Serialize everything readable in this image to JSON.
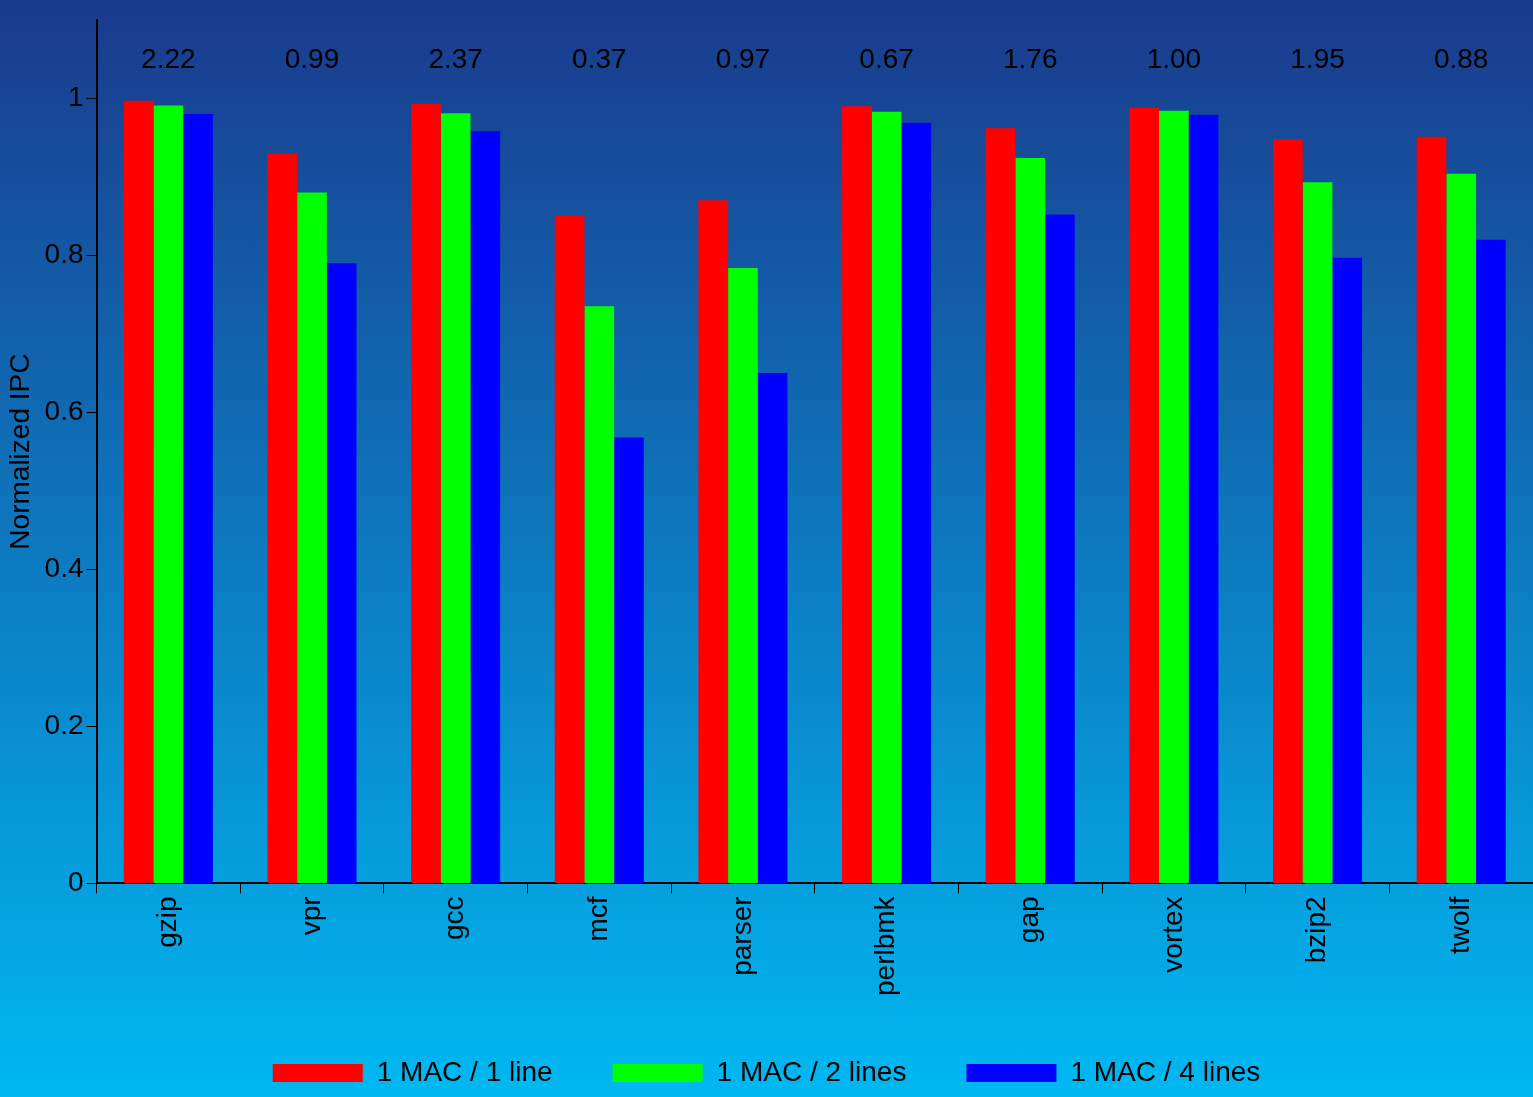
{
  "chart_data": {
    "type": "bar",
    "ylabel": "Normalized IPC",
    "categories": [
      "gzip",
      "vpr",
      "gcc",
      "mcf",
      "parser",
      "perlbmk",
      "gap",
      "vortex",
      "bzip2",
      "twolf"
    ],
    "series": [
      {
        "name": "1 MAC / 1 line",
        "color": "#ff0000",
        "values": [
          0.997,
          0.93,
          0.993,
          0.851,
          0.87,
          0.99,
          0.962,
          0.988,
          0.948,
          0.951
        ]
      },
      {
        "name": "1 MAC / 2 lines",
        "color": "#00ff00",
        "values": [
          0.991,
          0.88,
          0.981,
          0.735,
          0.784,
          0.983,
          0.924,
          0.984,
          0.893,
          0.904
        ]
      },
      {
        "name": "1 MAC / 4 lines",
        "color": "#0000ff",
        "values": [
          0.98,
          0.79,
          0.958,
          0.568,
          0.65,
          0.969,
          0.852,
          0.979,
          0.797,
          0.82
        ]
      }
    ],
    "ylim": [
      0,
      1.1
    ],
    "yticks": [
      0,
      0.2,
      0.4,
      0.6,
      0.8,
      1
    ],
    "annotations": [
      "2.22",
      "0.99",
      "2.37",
      "0.37",
      "0.97",
      "0.67",
      "1.76",
      "1.00",
      "1.95",
      "0.88"
    ],
    "grid": false,
    "legend": "bottom"
  }
}
